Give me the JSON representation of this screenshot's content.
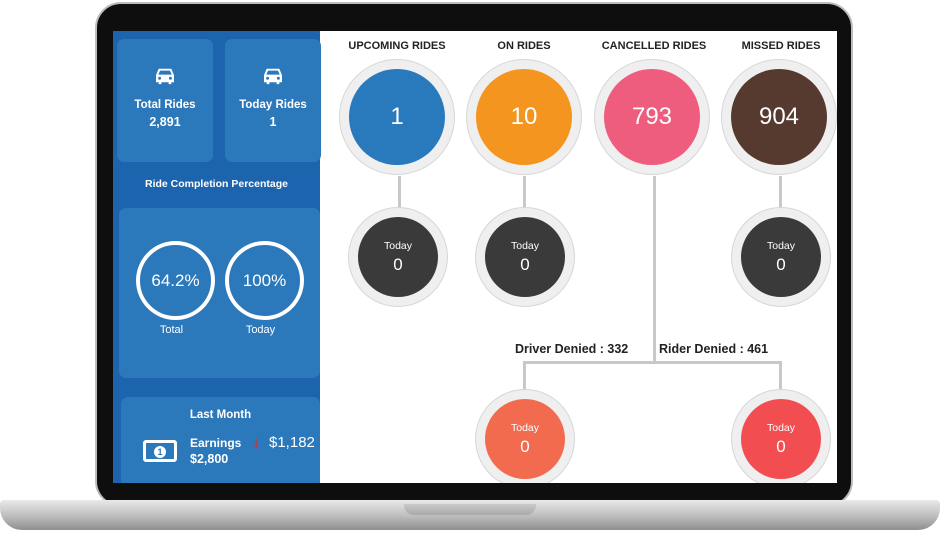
{
  "sidebar": {
    "total_rides": {
      "label": "Total Rides",
      "value": "2,891",
      "icon": "car-icon"
    },
    "today_rides": {
      "label": "Today Rides",
      "value": "1",
      "icon": "car-icon"
    },
    "completion_title": "Ride Completion Percentage",
    "completion": [
      {
        "value": "64.2%",
        "label": "Total"
      },
      {
        "value": "100%",
        "label": "Today"
      }
    ],
    "last_month": {
      "title": "Last Month",
      "earnings_label": "Earnings",
      "earnings_value": "$2,800",
      "change": "$1,182",
      "change_direction": "down",
      "icon": "money-icon"
    }
  },
  "columns": [
    {
      "title": "UPCOMING RIDES",
      "value": "1",
      "today_label": "Today",
      "today_value": "0",
      "color": "#2979bd"
    },
    {
      "title": "ON RIDES",
      "value": "10",
      "today_label": "Today",
      "today_value": "0",
      "color": "#f4951f"
    },
    {
      "title": "CANCELLED RIDES",
      "value": "793",
      "color": "#ee5c7e"
    },
    {
      "title": "MISSED RIDES",
      "value": "904",
      "today_label": "Today",
      "today_value": "0",
      "color": "#56392f"
    }
  ],
  "cancelled_breakdown": [
    {
      "label": "Driver Denied : 332",
      "today_label": "Today",
      "today_value": "0",
      "color": "#f26b4e"
    },
    {
      "label": "Rider Denied : 461",
      "today_label": "Today",
      "today_value": "0",
      "color": "#f24d50"
    }
  ],
  "colors": {
    "sidebar": "#1c64ad",
    "card": "#2b78ba",
    "today_bubble": "#3a3a3a",
    "arrow_down": "#e02c2c"
  }
}
